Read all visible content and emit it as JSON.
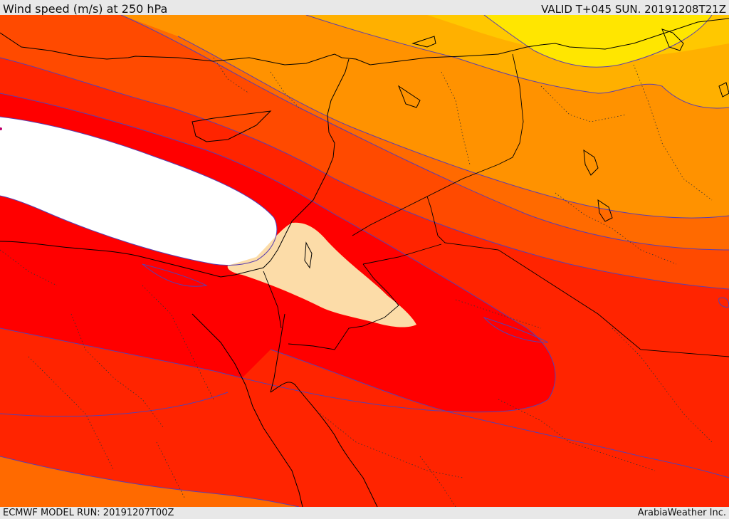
{
  "header": {
    "title": "Wind speed (m/s) at 250 hPa",
    "valid": "VALID T+045 SUN. 20191208T21Z"
  },
  "footer": {
    "model_run": "ECMWF MODEL RUN: 20191207T00Z",
    "credit": "ArabiaWeather Inc."
  },
  "colors": {
    "jet_core_white": "#ffffff",
    "very_fast_beige": "#fcdca8",
    "fast_red": "#ff0000",
    "red_orange": "#ff2400",
    "orange_red": "#ff4a00",
    "orange": "#ff6a00",
    "light_orange": "#ff9200",
    "amber": "#ffb000",
    "yellow_orange": "#ffc800",
    "yellow": "#ffe600",
    "contour_line": "#5a3fb0",
    "border_line": "#000000"
  }
}
